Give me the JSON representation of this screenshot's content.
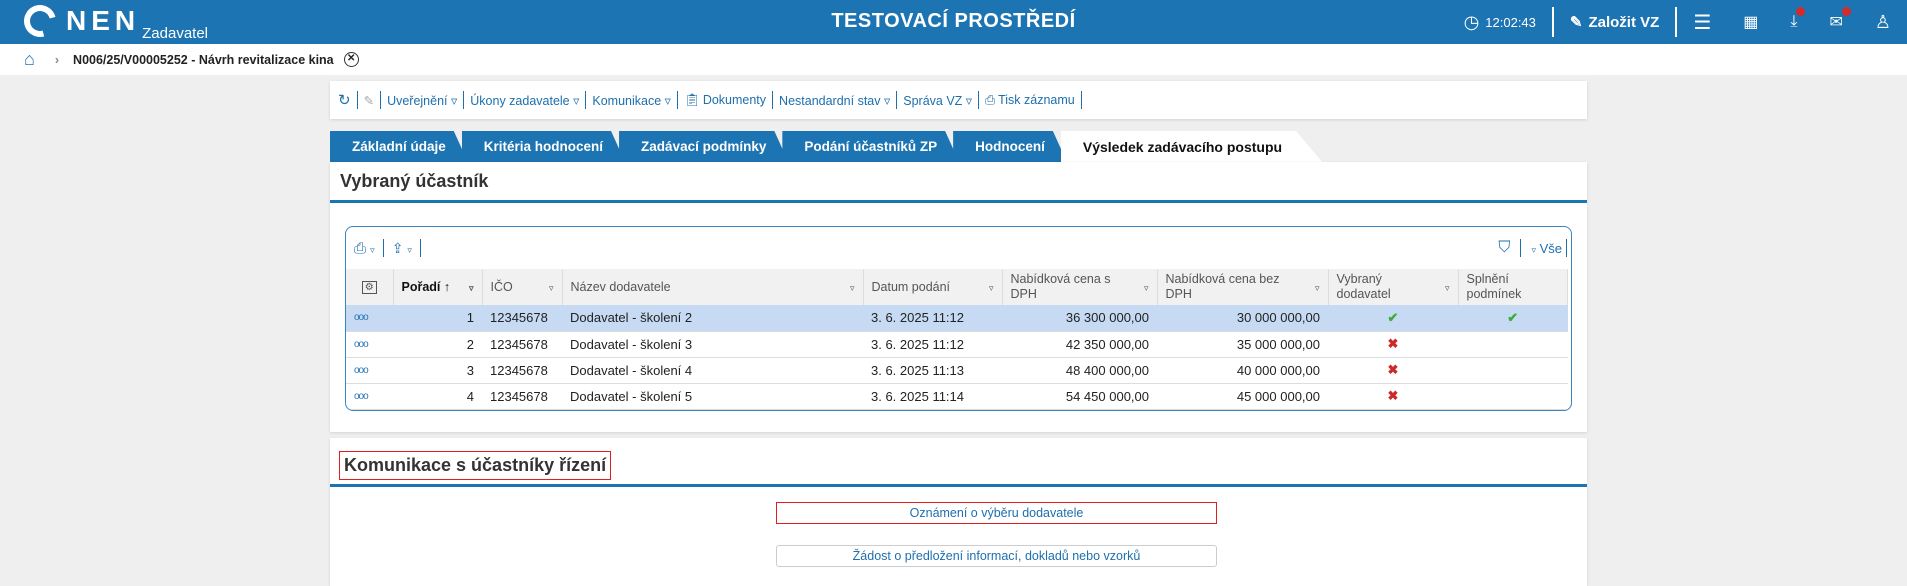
{
  "header": {
    "logo": "NEN",
    "logo_sub": "Zadavatel",
    "environment": "TESTOVACÍ PROSTŘEDÍ",
    "time": "12:02:43",
    "create_label": "Založit VZ",
    "accent": "#1d74b2",
    "notification_color": "#d32b2b"
  },
  "breadcrumb": {
    "item": "N006/25/V00005252 - Návrh revitalizace kina"
  },
  "toolbar": {
    "items": [
      "Uveřejnění ▿",
      "Úkony zadavatele ▿",
      "Komunikace ▿",
      "Dokumenty",
      "Nestandardní stav ▿",
      "Správa VZ ▿",
      "Tisk záznamu"
    ]
  },
  "tabs": [
    "Základní údaje",
    "Kritéria hodnocení",
    "Zadávací podmínky",
    "Podání účastníků ZP",
    "Hodnocení",
    "Výsledek zadávacího postupu"
  ],
  "active_tab": "Výsledek zadávacího postupu",
  "section1": {
    "title": "Vybraný účastník",
    "filter_all": "Vše",
    "columns": [
      "Pořadí",
      "IČO",
      "Název dodavatele",
      "Datum podání",
      "Nabídková cena s DPH",
      "Nabídková cena bez DPH",
      "Vybraný dodavatel",
      "Splnění podmínek"
    ],
    "rows": [
      {
        "rank": "1",
        "ico": "12345678",
        "name": "Dodavatel - školení 2",
        "date": "3. 6. 2025 11:12",
        "price_vat": "36 300 000,00",
        "price": "30 000 000,00",
        "selected": "✔",
        "conditions": "✔"
      },
      {
        "rank": "2",
        "ico": "12345678",
        "name": "Dodavatel - školení 3",
        "date": "3. 6. 2025 11:12",
        "price_vat": "42 350 000,00",
        "price": "35 000 000,00",
        "selected": "✖",
        "conditions": ""
      },
      {
        "rank": "3",
        "ico": "12345678",
        "name": "Dodavatel - školení 4",
        "date": "3. 6. 2025 11:13",
        "price_vat": "48 400 000,00",
        "price": "40 000 000,00",
        "selected": "✖",
        "conditions": ""
      },
      {
        "rank": "4",
        "ico": "12345678",
        "name": "Dodavatel - školení 5",
        "date": "3. 6. 2025 11:14",
        "price_vat": "54 450 000,00",
        "price": "45 000 000,00",
        "selected": "✖",
        "conditions": ""
      }
    ]
  },
  "section2": {
    "title": "Komunikace s účastníky řízení",
    "buttons": [
      "Oznámení o výběru dodavatele",
      "Žádost o předložení informací, dokladů nebo vzorků"
    ]
  }
}
